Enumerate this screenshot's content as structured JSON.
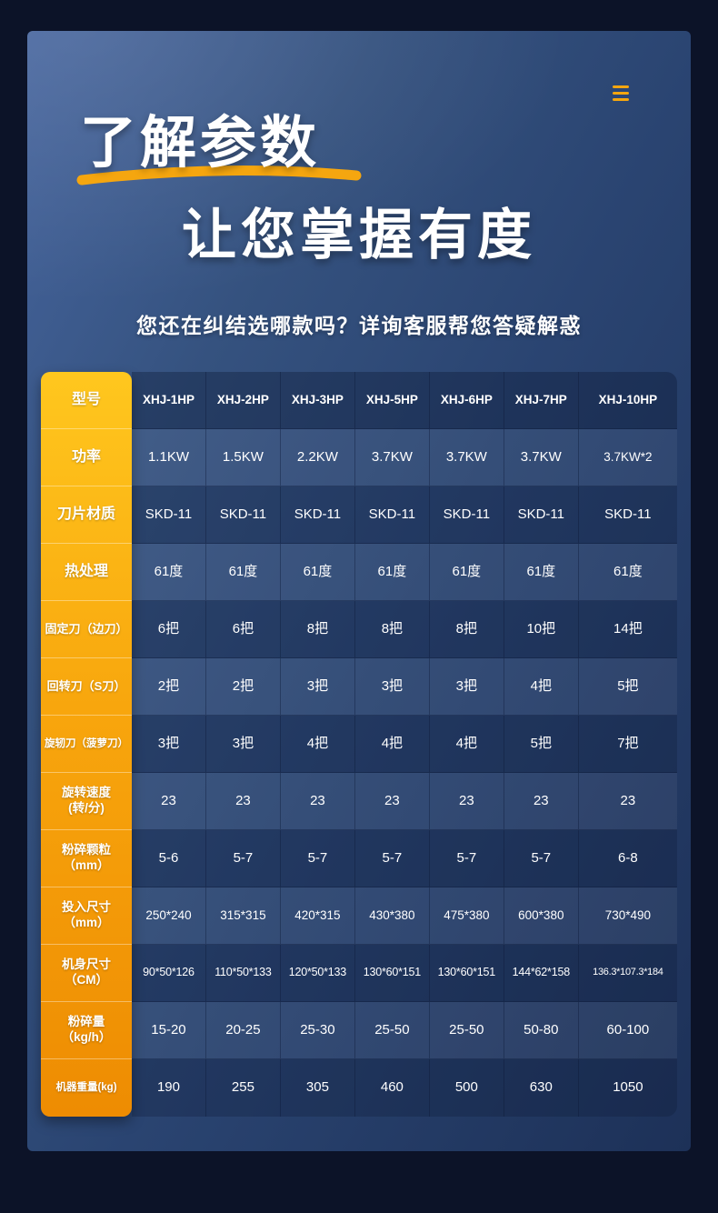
{
  "page": {
    "background_color": "#0c1328",
    "panel_gradient_from": "#46659e",
    "panel_gradient_to": "#1d3158",
    "accent_color": "#f5a60f",
    "label_column_gradient_from": "#ffc71e",
    "label_column_gradient_to": "#ee8c02"
  },
  "header": {
    "menu_icon": "hamburger-icon",
    "title_line1": "了解参数",
    "title_line2": "让您掌握有度",
    "subtitle": "您还在纠结选哪款吗？详询客服帮您答疑解惑"
  },
  "spec_table": {
    "rows": [
      {
        "label": "型号",
        "values": [
          "XHJ-1HP",
          "XHJ-2HP",
          "XHJ-3HP",
          "XHJ-5HP",
          "XHJ-6HP",
          "XHJ-7HP",
          "XHJ-10HP"
        ]
      },
      {
        "label": "功率",
        "values": [
          "1.1KW",
          "1.5KW",
          "2.2KW",
          "3.7KW",
          "3.7KW",
          "3.7KW",
          "3.7KW*2"
        ]
      },
      {
        "label": "刀片材质",
        "values": [
          "SKD-11",
          "SKD-11",
          "SKD-11",
          "SKD-11",
          "SKD-11",
          "SKD-11",
          "SKD-11"
        ]
      },
      {
        "label": "热处理",
        "values": [
          "61度",
          "61度",
          "61度",
          "61度",
          "61度",
          "61度",
          "61度"
        ]
      },
      {
        "label": "固定刀（边刀）",
        "values": [
          "6把",
          "6把",
          "8把",
          "8把",
          "8把",
          "10把",
          "14把"
        ]
      },
      {
        "label": "回转刀（S刀）",
        "values": [
          "2把",
          "2把",
          "3把",
          "3把",
          "3把",
          "4把",
          "5把"
        ]
      },
      {
        "label": "旋轫刀（菠萝刀）",
        "values": [
          "3把",
          "3把",
          "4把",
          "4把",
          "4把",
          "5把",
          "7把"
        ]
      },
      {
        "label": "旋转速度\n(转/分)",
        "values": [
          "23",
          "23",
          "23",
          "23",
          "23",
          "23",
          "23"
        ]
      },
      {
        "label": "粉碎颗粒\n（mm）",
        "values": [
          "5-6",
          "5-7",
          "5-7",
          "5-7",
          "5-7",
          "5-7",
          "6-8"
        ]
      },
      {
        "label": "投入尺寸\n（mm）",
        "values": [
          "250*240",
          "315*315",
          "420*315",
          "430*380",
          "475*380",
          "600*380",
          "730*490"
        ]
      },
      {
        "label": "机身尺寸\n（CM）",
        "values": [
          "90*50*126",
          "110*50*133",
          "120*50*133",
          "130*60*151",
          "130*60*151",
          "144*62*158",
          "136.3*107.3*184"
        ]
      },
      {
        "label": "粉碎量\n（kg/h）",
        "values": [
          "15-20",
          "20-25",
          "25-30",
          "25-50",
          "25-50",
          "50-80",
          "60-100"
        ]
      },
      {
        "label": "机器重量(kg)",
        "values": [
          "190",
          "255",
          "305",
          "460",
          "500",
          "630",
          "1050"
        ]
      }
    ]
  }
}
